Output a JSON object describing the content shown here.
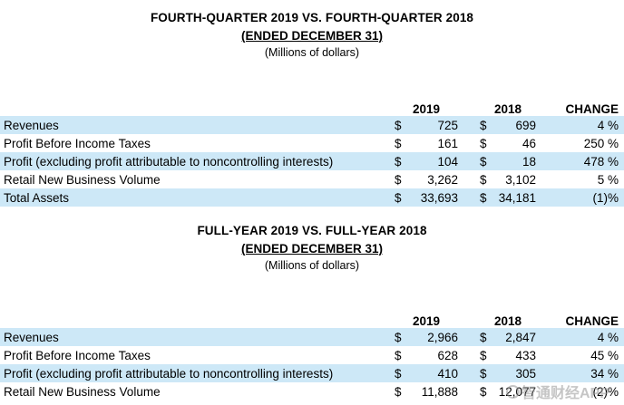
{
  "colors": {
    "row_highlight": "#cde8f7",
    "text": "#000000",
    "watermark_gray": "#969696"
  },
  "watermark": {
    "text": "智通财经APP",
    "icon": "circle-logo"
  },
  "sections": [
    {
      "title": "FOURTH-QUARTER 2019 VS. FOURTH-QUARTER 2018",
      "subtitle": "(ENDED DECEMBER 31)",
      "unit_note": "(Millions of dollars)",
      "table": {
        "columns": [
          "2019",
          "2018",
          "CHANGE"
        ],
        "rows": [
          {
            "label": "Revenues",
            "cur_2019": "$",
            "val_2019": "725",
            "cur_2018": "$",
            "val_2018": "699",
            "change": "4 %"
          },
          {
            "label": "Profit Before Income Taxes",
            "cur_2019": "$",
            "val_2019": "161",
            "cur_2018": "$",
            "val_2018": "46",
            "change": "250 %"
          },
          {
            "label": "Profit (excluding profit attributable to noncontrolling interests)",
            "cur_2019": "$",
            "val_2019": "104",
            "cur_2018": "$",
            "val_2018": "18",
            "change": "478 %"
          },
          {
            "label": "Retail New Business Volume",
            "cur_2019": "$",
            "val_2019": "3,262",
            "cur_2018": "$",
            "val_2018": "3,102",
            "change": "5 %"
          },
          {
            "label": "Total Assets",
            "cur_2019": "$",
            "val_2019": "33,693",
            "cur_2018": "$",
            "val_2018": "34,181",
            "change": "(1)%"
          }
        ]
      }
    },
    {
      "title": "FULL-YEAR 2019 VS. FULL-YEAR 2018",
      "subtitle": "(ENDED DECEMBER 31)",
      "unit_note": "(Millions of dollars)",
      "table": {
        "columns": [
          "2019",
          "2018",
          "CHANGE"
        ],
        "rows": [
          {
            "label": "Revenues",
            "cur_2019": "$",
            "val_2019": "2,966",
            "cur_2018": "$",
            "val_2018": "2,847",
            "change": "4 %"
          },
          {
            "label": "Profit Before Income Taxes",
            "cur_2019": "$",
            "val_2019": "628",
            "cur_2018": "$",
            "val_2018": "433",
            "change": "45 %"
          },
          {
            "label": "Profit (excluding profit attributable to noncontrolling interests)",
            "cur_2019": "$",
            "val_2019": "410",
            "cur_2018": "$",
            "val_2018": "305",
            "change": "34 %"
          },
          {
            "label": "Retail New Business Volume",
            "cur_2019": "$",
            "val_2019": "11,888",
            "cur_2018": "$",
            "val_2018": "12,077",
            "change": "(2)%"
          }
        ]
      }
    }
  ]
}
